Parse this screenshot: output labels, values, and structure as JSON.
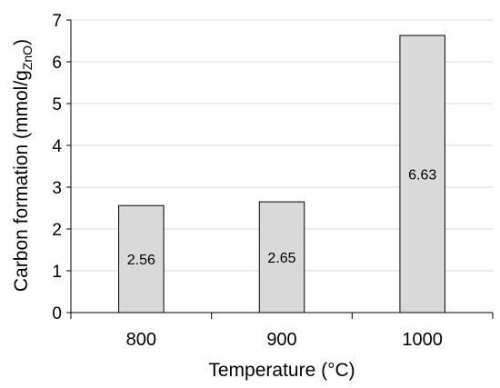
{
  "chart_data": {
    "type": "bar",
    "title": "",
    "xlabel": "Temperature (°C)",
    "ylabel": {
      "main": "Carbon formation (mmol/g",
      "subscript": "ZnO",
      "suffix": ")"
    },
    "categories": [
      "800",
      "900",
      "1000"
    ],
    "values": [
      2.56,
      2.65,
      6.63
    ],
    "data_labels": [
      "2.56",
      "2.65",
      "6.63"
    ],
    "ylim": [
      0,
      7
    ],
    "yticks": [
      "0",
      "1",
      "2",
      "3",
      "4",
      "5",
      "6",
      "7"
    ],
    "grid": true,
    "legend": "none",
    "colors": {
      "bar_fill": "#d9d9d9",
      "bar_stroke": "#000000",
      "grid": "#d9d9d9",
      "axis": "#000000"
    }
  }
}
